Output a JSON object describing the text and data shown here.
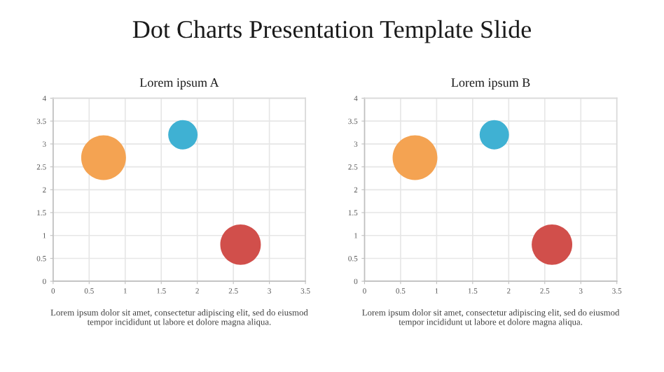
{
  "chart_data": [
    {
      "type": "bubble",
      "title": "Dot Charts Presentation Template Slide",
      "subtitle": "Lorem ipsum A",
      "series": [
        {
          "x": [
            0.7,
            1.8,
            2.6
          ],
          "values": [
            2.7,
            3.2,
            0.8
          ],
          "sizes": [
            1,
            0.43,
            0.82
          ],
          "colors": [
            "#f4a352",
            "#3fb1d3",
            "#d14f4b"
          ]
        }
      ],
      "xlim": [
        0,
        3.5
      ],
      "xticks": [
        0,
        0.5,
        1,
        1.5,
        2,
        2.5,
        3,
        3.5
      ],
      "ylim": [
        0,
        4
      ],
      "yticks": [
        0,
        0.5,
        1,
        1.5,
        2,
        2.5,
        3,
        3.5,
        4
      ],
      "grid": true,
      "legend": false,
      "annotations": [
        "Lorem ipsum dolor sit amet, consectetur adipiscing elit, sed do eiusmod tempor incididunt ut labore et dolore magna aliqua."
      ]
    },
    {
      "type": "bubble",
      "title": "Lorem ipsum B",
      "series": [
        {
          "x": [
            0.7,
            1.8,
            2.6
          ],
          "values": [
            2.7,
            3.2,
            0.8
          ],
          "sizes": [
            1,
            0.43,
            0.82
          ],
          "colors": [
            "#f4a352",
            "#3fb1d3",
            "#d14f4b"
          ]
        }
      ],
      "xlim": [
        0,
        3.5
      ],
      "xticks": [
        0,
        0.5,
        1,
        1.5,
        2,
        2.5,
        3,
        3.5
      ],
      "ylim": [
        0,
        4
      ],
      "yticks": [
        0,
        0.5,
        1,
        1.5,
        2,
        2.5,
        3,
        3.5,
        4
      ],
      "grid": true,
      "legend": false,
      "annotations": [
        "Lorem ipsum dolor sit amet, consectetur adipiscing elit, sed do eiusmod tempor incididunt ut labore et dolore magna aliqua."
      ]
    }
  ]
}
